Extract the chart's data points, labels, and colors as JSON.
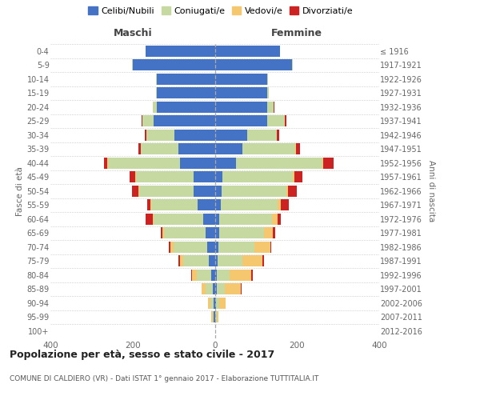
{
  "age_groups": [
    "0-4",
    "5-9",
    "10-14",
    "15-19",
    "20-24",
    "25-29",
    "30-34",
    "35-39",
    "40-44",
    "45-49",
    "50-54",
    "55-59",
    "60-64",
    "65-69",
    "70-74",
    "75-79",
    "80-84",
    "85-89",
    "90-94",
    "95-99",
    "100+"
  ],
  "birth_years": [
    "2012-2016",
    "2007-2011",
    "2002-2006",
    "1997-2001",
    "1992-1996",
    "1987-1991",
    "1982-1986",
    "1977-1981",
    "1972-1976",
    "1967-1971",
    "1962-1966",
    "1957-1961",
    "1952-1956",
    "1947-1951",
    "1942-1946",
    "1937-1941",
    "1932-1936",
    "1927-1931",
    "1922-1926",
    "1917-1921",
    "≤ 1916"
  ],
  "colors": {
    "celibe": "#4472C4",
    "coniugato": "#c5d9a0",
    "vedovo": "#f5c870",
    "divorziato": "#cc2222"
  },
  "maschi": {
    "celibe": [
      168,
      200,
      142,
      142,
      142,
      148,
      98,
      88,
      85,
      52,
      52,
      42,
      28,
      22,
      18,
      14,
      8,
      5,
      3,
      2,
      0
    ],
    "coniugato": [
      1,
      2,
      1,
      2,
      8,
      28,
      68,
      92,
      175,
      140,
      132,
      112,
      120,
      102,
      82,
      62,
      36,
      18,
      8,
      3,
      0
    ],
    "vedovo": [
      0,
      0,
      0,
      0,
      0,
      1,
      1,
      1,
      2,
      2,
      2,
      2,
      3,
      4,
      9,
      9,
      11,
      9,
      6,
      3,
      0
    ],
    "divorziato": [
      0,
      0,
      0,
      0,
      0,
      2,
      4,
      4,
      8,
      14,
      16,
      8,
      18,
      4,
      3,
      3,
      2,
      1,
      0,
      0,
      0
    ]
  },
  "femmine": {
    "nubile": [
      158,
      188,
      128,
      128,
      128,
      128,
      78,
      68,
      52,
      18,
      17,
      15,
      11,
      11,
      9,
      7,
      4,
      4,
      2,
      1,
      0
    ],
    "coniugata": [
      1,
      2,
      2,
      4,
      16,
      42,
      72,
      128,
      210,
      172,
      158,
      138,
      128,
      108,
      88,
      60,
      32,
      20,
      9,
      3,
      0
    ],
    "vedova": [
      0,
      0,
      0,
      0,
      0,
      1,
      1,
      2,
      2,
      3,
      4,
      7,
      14,
      23,
      38,
      48,
      52,
      40,
      16,
      5,
      1
    ],
    "divorziata": [
      0,
      0,
      0,
      0,
      1,
      3,
      5,
      9,
      26,
      20,
      20,
      20,
      7,
      4,
      3,
      5,
      4,
      2,
      0,
      0,
      0
    ]
  },
  "title": "Popolazione per età, sesso e stato civile - 2017",
  "subtitle": "COMUNE DI CALDIERO (VR) - Dati ISTAT 1° gennaio 2017 - Elaborazione TUTTITALIA.IT",
  "maschi_label": "Maschi",
  "femmine_label": "Femmine",
  "ylabel_left": "Fasce di età",
  "ylabel_right": "Anni di nascita",
  "xlim": 400,
  "legend_labels": [
    "Celibi/Nubili",
    "Coniugati/e",
    "Vedovi/e",
    "Divorziati/e"
  ],
  "bg_color": "#ffffff",
  "grid_color": "#cccccc"
}
